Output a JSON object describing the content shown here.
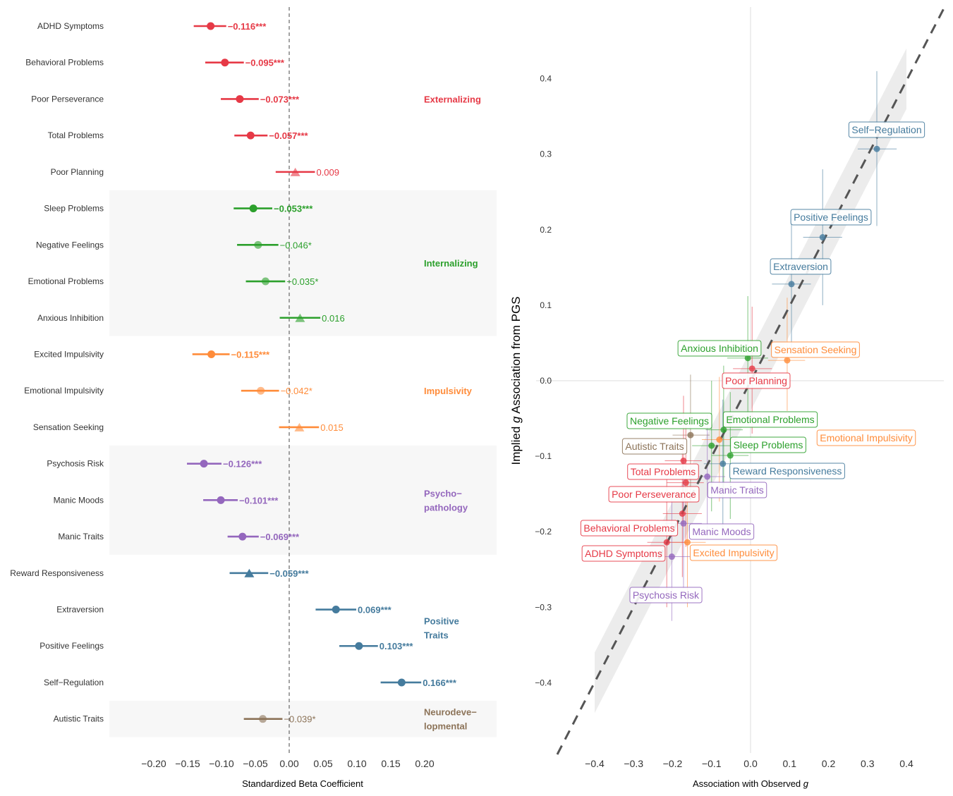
{
  "colors": {
    "Externalizing": "#E63946",
    "Internalizing": "#2CA02C",
    "Impulsivity": "#FF8C3A",
    "Psychopathology": "#9467BD",
    "Positive Traits": "#457B9D",
    "Neurodevelopmental": "#8C7358"
  },
  "chart_data": [
    {
      "type": "forest",
      "xlabel": "Standardized Beta Coefficient",
      "xlim": [
        -0.25,
        0.3
      ],
      "xticks": [
        "−0.20",
        "−0.15",
        "−0.10",
        "−0.05",
        "0.00",
        "0.05",
        "0.10",
        "0.15",
        "0.20"
      ],
      "xtick_values": [
        -0.2,
        -0.15,
        -0.1,
        -0.05,
        0,
        0.05,
        0.1,
        0.15,
        0.2
      ],
      "reference_line": 0,
      "groups": [
        {
          "name": "Externalizing",
          "label_lines": [
            "Externalizing"
          ],
          "shaded": false
        },
        {
          "name": "Internalizing",
          "label_lines": [
            "Internalizing"
          ],
          "shaded": true
        },
        {
          "name": "Impulsivity",
          "label_lines": [
            "Impulsivity"
          ],
          "shaded": false
        },
        {
          "name": "Psychopathology",
          "label_lines": [
            "Psycho−",
            "pathology"
          ],
          "shaded": true
        },
        {
          "name": "Positive Traits",
          "label_lines": [
            "Positive",
            "Traits"
          ],
          "shaded": false
        },
        {
          "name": "Neurodevelopmental",
          "label_lines": [
            "Neurodeve−",
            "lopmental"
          ],
          "shaded": true
        }
      ],
      "rows": [
        {
          "label": "ADHD Symptoms",
          "group": "Externalizing",
          "beta": -0.116,
          "lo": -0.141,
          "hi": -0.093,
          "text": "−0.116***",
          "sig": "***",
          "marker": "circle"
        },
        {
          "label": "Behavioral Problems",
          "group": "Externalizing",
          "beta": -0.095,
          "lo": -0.124,
          "hi": -0.067,
          "text": "−0.095***",
          "sig": "***",
          "marker": "circle"
        },
        {
          "label": "Poor Perseverance",
          "group": "Externalizing",
          "beta": -0.073,
          "lo": -0.101,
          "hi": -0.045,
          "text": "−0.073***",
          "sig": "***",
          "marker": "circle"
        },
        {
          "label": "Total Problems",
          "group": "Externalizing",
          "beta": -0.057,
          "lo": -0.081,
          "hi": -0.032,
          "text": "−0.057***",
          "sig": "***",
          "marker": "circle"
        },
        {
          "label": "Poor Planning",
          "group": "Externalizing",
          "beta": 0.009,
          "lo": -0.02,
          "hi": 0.038,
          "text": "0.009",
          "sig": "",
          "marker": "triangle"
        },
        {
          "label": "Sleep Problems",
          "group": "Internalizing",
          "beta": -0.053,
          "lo": -0.082,
          "hi": -0.025,
          "text": "−0.053***",
          "sig": "***",
          "marker": "circle"
        },
        {
          "label": "Negative Feelings",
          "group": "Internalizing",
          "beta": -0.046,
          "lo": -0.077,
          "hi": -0.016,
          "text": "−0.046*",
          "sig": "*",
          "marker": "circle"
        },
        {
          "label": "Emotional Problems",
          "group": "Internalizing",
          "beta": -0.035,
          "lo": -0.064,
          "hi": -0.006,
          "text": "−0.035*",
          "sig": "*",
          "marker": "circle"
        },
        {
          "label": "Anxious Inhibition",
          "group": "Internalizing",
          "beta": 0.016,
          "lo": -0.014,
          "hi": 0.046,
          "text": "0.016",
          "sig": "",
          "marker": "triangle"
        },
        {
          "label": "Excited Impulsivity",
          "group": "Impulsivity",
          "beta": -0.115,
          "lo": -0.143,
          "hi": -0.088,
          "text": "−0.115***",
          "sig": "***",
          "marker": "circle"
        },
        {
          "label": "Emotional Impulsivity",
          "group": "Impulsivity",
          "beta": -0.042,
          "lo": -0.071,
          "hi": -0.015,
          "text": "−0.042*",
          "sig": "*",
          "marker": "circle"
        },
        {
          "label": "Sensation Seeking",
          "group": "Impulsivity",
          "beta": 0.015,
          "lo": -0.015,
          "hi": 0.044,
          "text": "0.015",
          "sig": "",
          "marker": "triangle"
        },
        {
          "label": "Psychosis Risk",
          "group": "Psychopathology",
          "beta": -0.126,
          "lo": -0.151,
          "hi": -0.1,
          "text": "−0.126***",
          "sig": "***",
          "marker": "circle"
        },
        {
          "label": "Manic Moods",
          "group": "Psychopathology",
          "beta": -0.101,
          "lo": -0.127,
          "hi": -0.076,
          "text": "−0.101***",
          "sig": "***",
          "marker": "circle"
        },
        {
          "label": "Manic Traits",
          "group": "Psychopathology",
          "beta": -0.069,
          "lo": -0.091,
          "hi": -0.045,
          "text": "−0.069***",
          "sig": "***",
          "marker": "circle"
        },
        {
          "label": "Reward Responsiveness",
          "group": "Positive Traits",
          "beta": -0.059,
          "lo": -0.088,
          "hi": -0.031,
          "text": "−0.059***",
          "sig": "***",
          "marker": "triangle"
        },
        {
          "label": "Extraversion",
          "group": "Positive Traits",
          "beta": 0.069,
          "lo": 0.039,
          "hi": 0.099,
          "text": "0.069***",
          "sig": "***",
          "marker": "circle"
        },
        {
          "label": "Positive Feelings",
          "group": "Positive Traits",
          "beta": 0.103,
          "lo": 0.074,
          "hi": 0.131,
          "text": "0.103***",
          "sig": "***",
          "marker": "circle"
        },
        {
          "label": "Self−Regulation",
          "group": "Positive Traits",
          "beta": 0.166,
          "lo": 0.135,
          "hi": 0.195,
          "text": "0.166***",
          "sig": "***",
          "marker": "circle"
        },
        {
          "label": "Autistic Traits",
          "group": "Neurodevelopmental",
          "beta": -0.039,
          "lo": -0.067,
          "hi": -0.01,
          "text": "−0.039*",
          "sig": "*",
          "marker": "circle"
        }
      ]
    },
    {
      "type": "scatter",
      "xlabel_parts": [
        "Association with Observed ",
        "g"
      ],
      "ylabel_parts": [
        "Implied ",
        "g",
        " Association from PGS"
      ],
      "xlim": [
        -0.5,
        0.5
      ],
      "ylim": [
        -0.5,
        0.5
      ],
      "xticks": [
        "−0.4",
        "−0.3",
        "−0.2",
        "−0.1",
        "0.0",
        "0.1",
        "0.2",
        "0.3",
        "0.4"
      ],
      "xtick_values": [
        -0.4,
        -0.3,
        -0.2,
        -0.1,
        0,
        0.1,
        0.2,
        0.3,
        0.4
      ],
      "yticks": [
        "0.4",
        "0.3",
        "0.2",
        "0.1",
        "0.0",
        "−0.1",
        "−0.2",
        "−0.3",
        "−0.4"
      ],
      "ytick_values": [
        0.4,
        0.3,
        0.2,
        0.1,
        0,
        -0.1,
        -0.2,
        -0.3,
        -0.4
      ],
      "reference_line": "y = x (dashed, with confidence ribbon)",
      "points": [
        {
          "label": "Self−Regulation",
          "group": "Positive Traits",
          "x": 0.324,
          "y": 0.307,
          "xlo": 0.275,
          "xhi": 0.375,
          "ylo": 0.205,
          "yhi": 0.41
        },
        {
          "label": "Positive Feelings",
          "group": "Positive Traits",
          "x": 0.185,
          "y": 0.19,
          "xlo": 0.135,
          "xhi": 0.235,
          "ylo": 0.1,
          "yhi": 0.28
        },
        {
          "label": "Extraversion",
          "group": "Positive Traits",
          "x": 0.105,
          "y": 0.128,
          "xlo": 0.055,
          "xhi": 0.155,
          "ylo": 0.035,
          "yhi": 0.215
        },
        {
          "label": "Anxious Inhibition",
          "group": "Internalizing",
          "x": -0.007,
          "y": 0.03,
          "xlo": -0.06,
          "xhi": 0.045,
          "ylo": -0.06,
          "yhi": 0.112
        },
        {
          "label": "Sensation Seeking",
          "group": "Impulsivity",
          "x": 0.094,
          "y": 0.027,
          "xlo": 0.045,
          "xhi": 0.14,
          "ylo": -0.04,
          "yhi": 0.11
        },
        {
          "label": "Poor Planning",
          "group": "Externalizing",
          "x": 0.004,
          "y": 0.016,
          "xlo": -0.045,
          "xhi": 0.055,
          "ylo": -0.07,
          "yhi": 0.098
        },
        {
          "label": "Emotional Problems",
          "group": "Internalizing",
          "x": -0.069,
          "y": -0.065,
          "xlo": -0.115,
          "xhi": -0.02,
          "ylo": -0.15,
          "yhi": 0.02
        },
        {
          "label": "Autistic Traits",
          "group": "Neurodevelopmental",
          "x": -0.154,
          "y": -0.072,
          "xlo": -0.2,
          "xhi": -0.105,
          "ylo": -0.16,
          "yhi": 0.008
        },
        {
          "label": "Emotional Impulsivity",
          "group": "Impulsivity",
          "x": -0.08,
          "y": -0.078,
          "xlo": -0.125,
          "xhi": -0.035,
          "ylo": -0.16,
          "yhi": 0.005
        },
        {
          "label": "Negative Feelings",
          "group": "Internalizing",
          "x": -0.1,
          "y": -0.086,
          "xlo": -0.15,
          "xhi": -0.05,
          "ylo": -0.173,
          "yhi": 0.0
        },
        {
          "label": "Sleep Problems",
          "group": "Internalizing",
          "x": -0.052,
          "y": -0.099,
          "xlo": -0.1,
          "xhi": -0.005,
          "ylo": -0.183,
          "yhi": -0.015
        },
        {
          "label": "Total Problems",
          "group": "Externalizing",
          "x": -0.172,
          "y": -0.106,
          "xlo": -0.22,
          "xhi": -0.125,
          "ylo": -0.19,
          "yhi": -0.02
        },
        {
          "label": "Reward Responsiveness",
          "group": "Positive Traits",
          "x": -0.071,
          "y": -0.11,
          "xlo": -0.12,
          "xhi": -0.025,
          "ylo": -0.195,
          "yhi": -0.025
        },
        {
          "label": "Manic Traits",
          "group": "Psychopathology",
          "x": -0.111,
          "y": -0.127,
          "xlo": -0.16,
          "xhi": -0.065,
          "ylo": -0.21,
          "yhi": -0.045
        },
        {
          "label": "Poor Perseverance",
          "group": "Externalizing",
          "x": -0.166,
          "y": -0.135,
          "xlo": -0.215,
          "xhi": -0.12,
          "ylo": -0.22,
          "yhi": -0.05
        },
        {
          "label": "Behavioral Problems",
          "group": "Externalizing",
          "x": -0.175,
          "y": -0.176,
          "xlo": -0.225,
          "xhi": -0.125,
          "ylo": -0.26,
          "yhi": -0.09
        },
        {
          "label": "Manic Moods",
          "group": "Psychopathology",
          "x": -0.172,
          "y": -0.189,
          "xlo": -0.22,
          "xhi": -0.125,
          "ylo": -0.275,
          "yhi": -0.105
        },
        {
          "label": "Excited Impulsivity",
          "group": "Impulsivity",
          "x": -0.162,
          "y": -0.214,
          "xlo": -0.21,
          "xhi": -0.115,
          "ylo": -0.3,
          "yhi": -0.13
        },
        {
          "label": "ADHD Symptoms",
          "group": "Externalizing",
          "x": -0.215,
          "y": -0.214,
          "xlo": -0.265,
          "xhi": -0.165,
          "ylo": -0.3,
          "yhi": -0.13
        },
        {
          "label": "Psychosis Risk",
          "group": "Psychopathology",
          "x": -0.202,
          "y": -0.233,
          "xlo": -0.25,
          "xhi": -0.155,
          "ylo": -0.318,
          "yhi": -0.148
        }
      ]
    }
  ]
}
